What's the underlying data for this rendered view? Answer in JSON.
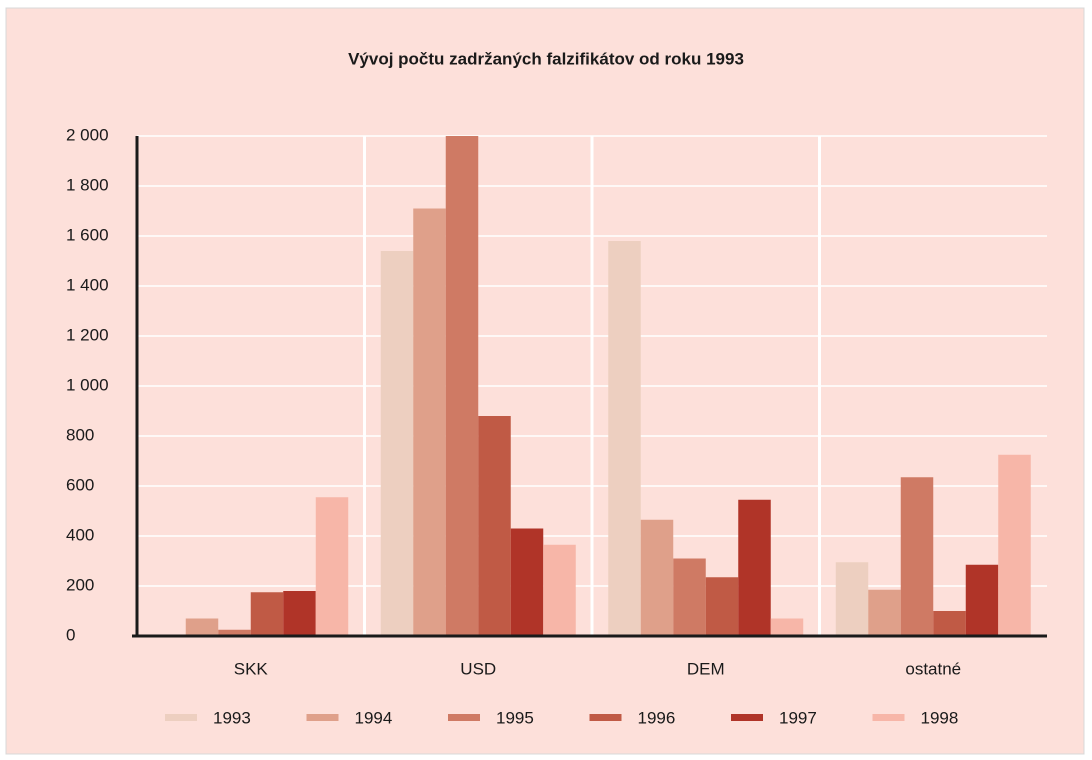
{
  "chart_data": {
    "type": "bar",
    "title": "Vývoj počtu zadržaných falzifikátov od roku 1993",
    "categories": [
      "SKK",
      "USD",
      "DEM",
      "ostatné"
    ],
    "series": [
      {
        "name": "1993",
        "color": "#edcfc0",
        "values": [
          5,
          1540,
          1580,
          295
        ]
      },
      {
        "name": "1994",
        "color": "#dfa08a",
        "values": [
          70,
          1710,
          465,
          185
        ]
      },
      {
        "name": "1995",
        "color": "#cf7a64",
        "values": [
          25,
          2000,
          310,
          635
        ]
      },
      {
        "name": "1996",
        "color": "#c05a45",
        "values": [
          175,
          880,
          235,
          100
        ]
      },
      {
        "name": "1997",
        "color": "#b03428",
        "values": [
          180,
          430,
          545,
          285
        ]
      },
      {
        "name": "1998",
        "color": "#f7b6a8",
        "values": [
          555,
          365,
          70,
          725
        ]
      }
    ],
    "ylim": [
      0,
      2000
    ],
    "yticks": [
      0,
      200,
      400,
      600,
      800,
      {
        "value": 1000,
        "label": "1 000"
      },
      {
        "value": 1200,
        "label": "1 200"
      },
      {
        "value": 1400,
        "label": "1 400"
      },
      {
        "value": 1600,
        "label": "1 600"
      },
      {
        "value": 1800,
        "label": "1 800"
      },
      {
        "value": 2000,
        "label": "2 000"
      }
    ],
    "grid": true
  }
}
